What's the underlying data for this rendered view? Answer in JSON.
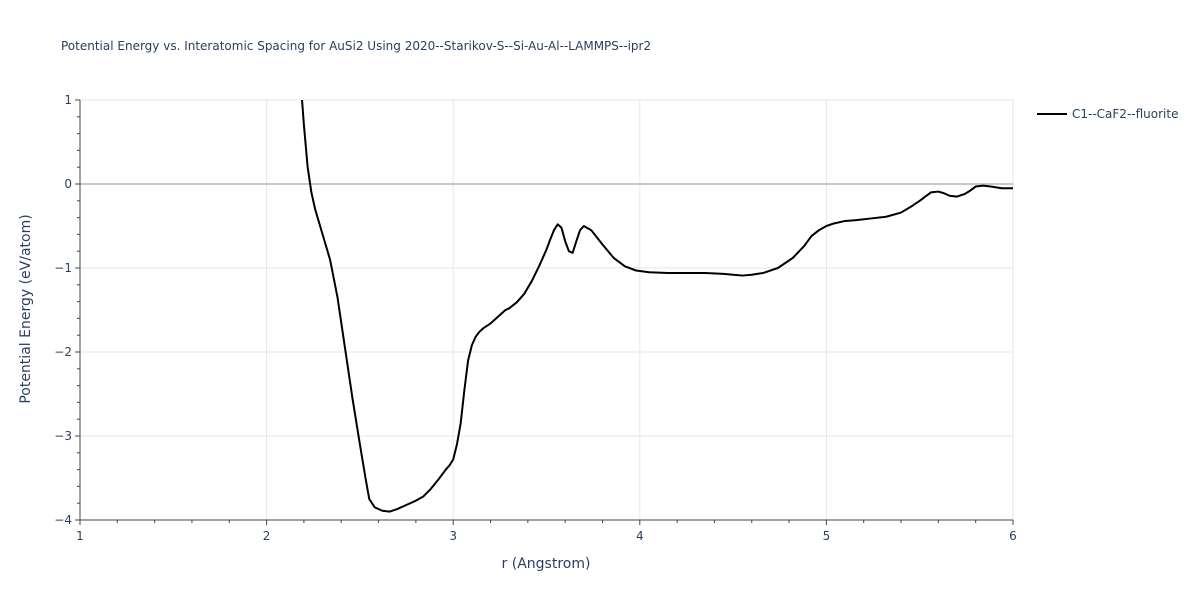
{
  "chart_data": {
    "type": "line",
    "title": "Potential Energy vs. Interatomic Spacing for AuSi2 Using 2020--Starikov-S--Si-Au-Al--LAMMPS--ipr2",
    "xlabel": "r (Angstrom)",
    "ylabel": "Potential Energy (eV/atom)",
    "xlim": [
      1,
      6
    ],
    "ylim": [
      -4,
      1
    ],
    "xticks": [
      1,
      2,
      3,
      4,
      5,
      6
    ],
    "xtick_labels": [
      "1",
      "2",
      "3",
      "4",
      "5",
      "6"
    ],
    "yticks": [
      -4,
      -3,
      -2,
      -1,
      0,
      1
    ],
    "ytick_labels": [
      "−4",
      "−3",
      "−2",
      "−1",
      "0",
      "1"
    ],
    "grid": true,
    "legend_position": "top-right",
    "series": [
      {
        "name": "C1--CaF2--fluorite",
        "color": "#000000",
        "x": [
          2.19,
          2.2,
          2.22,
          2.24,
          2.26,
          2.3,
          2.34,
          2.38,
          2.42,
          2.46,
          2.5,
          2.53,
          2.55,
          2.58,
          2.62,
          2.66,
          2.7,
          2.75,
          2.8,
          2.84,
          2.88,
          2.92,
          2.96,
          2.98,
          3.0,
          3.02,
          3.04,
          3.06,
          3.08,
          3.1,
          3.12,
          3.14,
          3.16,
          3.2,
          3.24,
          3.28,
          3.3,
          3.34,
          3.38,
          3.42,
          3.46,
          3.5,
          3.52,
          3.54,
          3.56,
          3.58,
          3.6,
          3.62,
          3.64,
          3.66,
          3.68,
          3.7,
          3.74,
          3.8,
          3.86,
          3.92,
          3.98,
          4.05,
          4.15,
          4.25,
          4.35,
          4.45,
          4.5,
          4.55,
          4.6,
          4.66,
          4.74,
          4.82,
          4.88,
          4.92,
          4.96,
          5.0,
          5.04,
          5.1,
          5.16,
          5.24,
          5.32,
          5.4,
          5.46,
          5.5,
          5.53,
          5.56,
          5.6,
          5.63,
          5.66,
          5.7,
          5.74,
          5.77,
          5.8,
          5.84,
          5.88,
          5.94,
          6.0
        ],
        "y": [
          1.0,
          0.7,
          0.2,
          -0.1,
          -0.3,
          -0.6,
          -0.9,
          -1.35,
          -1.95,
          -2.55,
          -3.1,
          -3.5,
          -3.75,
          -3.85,
          -3.89,
          -3.9,
          -3.87,
          -3.82,
          -3.77,
          -3.72,
          -3.63,
          -3.52,
          -3.4,
          -3.35,
          -3.28,
          -3.1,
          -2.85,
          -2.45,
          -2.1,
          -1.92,
          -1.82,
          -1.76,
          -1.72,
          -1.66,
          -1.58,
          -1.5,
          -1.48,
          -1.41,
          -1.31,
          -1.16,
          -0.98,
          -0.78,
          -0.66,
          -0.55,
          -0.48,
          -0.52,
          -0.68,
          -0.8,
          -0.82,
          -0.68,
          -0.55,
          -0.5,
          -0.55,
          -0.72,
          -0.88,
          -0.98,
          -1.03,
          -1.05,
          -1.06,
          -1.06,
          -1.06,
          -1.07,
          -1.08,
          -1.09,
          -1.08,
          -1.06,
          -1.0,
          -0.88,
          -0.74,
          -0.62,
          -0.55,
          -0.5,
          -0.47,
          -0.44,
          -0.43,
          -0.41,
          -0.39,
          -0.34,
          -0.26,
          -0.2,
          -0.15,
          -0.1,
          -0.09,
          -0.11,
          -0.14,
          -0.15,
          -0.12,
          -0.08,
          -0.03,
          -0.02,
          -0.03,
          -0.05,
          -0.05
        ]
      }
    ]
  }
}
